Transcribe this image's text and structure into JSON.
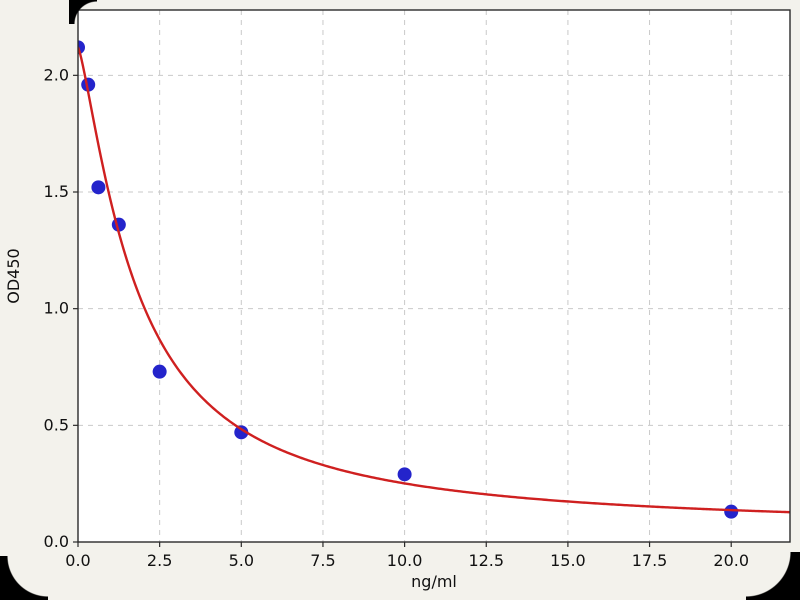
{
  "figure": {
    "description": "ELISA standard curve plot",
    "background": "#f3f2ec"
  },
  "chart_data": {
    "type": "scatter",
    "title": "",
    "xlabel": "ng/ml",
    "ylabel": "OD450",
    "xlim": [
      0,
      21.8
    ],
    "ylim": [
      0,
      2.28
    ],
    "xticks": [
      0,
      2.5,
      5,
      7.5,
      10,
      12.5,
      15,
      17.5,
      20
    ],
    "xtick_labels": [
      "0.0",
      "2.5",
      "5.0",
      "7.5",
      "10.0",
      "12.5",
      "15.0",
      "17.5",
      "20.0"
    ],
    "yticks": [
      0,
      0.5,
      1,
      1.5,
      2
    ],
    "ytick_labels": [
      "0.0",
      "0.5",
      "1.0",
      "1.5",
      "2.0"
    ],
    "grid": true,
    "grid_style": "dashed",
    "grid_color": "#c9c9c9",
    "plot_background": "#ffffff",
    "axes_color": "#2a2a2a",
    "tick_label_color": "#111111",
    "legend": null,
    "series": [
      {
        "name": "standard-points",
        "type": "scatter",
        "color": "#2424cb",
        "marker": "circle",
        "x": [
          0,
          0.3125,
          0.625,
          1.25,
          2.5,
          5,
          10,
          20
        ],
        "y": [
          2.12,
          1.96,
          1.52,
          1.36,
          0.73,
          0.47,
          0.29,
          0.13
        ]
      },
      {
        "name": "4pl-fit-curve",
        "type": "line",
        "color": "#cf2020",
        "model": "4pl",
        "params": {
          "a": 2.12,
          "b": 1.3,
          "c": 1.8,
          "d": 0.05
        }
      }
    ]
  }
}
